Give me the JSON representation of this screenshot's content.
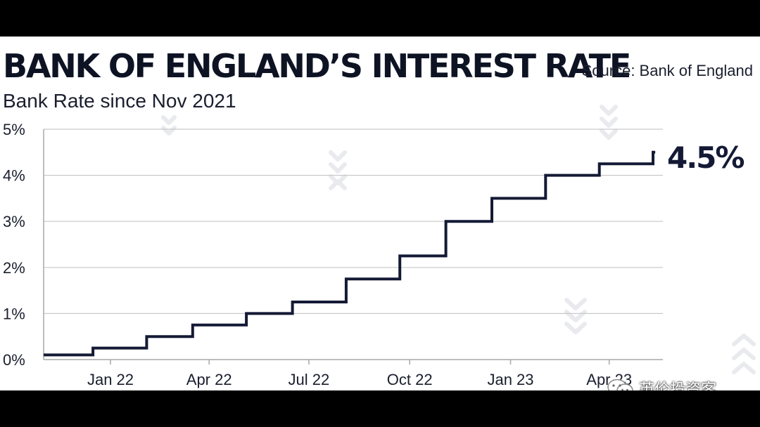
{
  "header": {
    "title": "BANK OF ENGLAND’S INTEREST RATE",
    "subtitle": "Bank Rate since Nov 2021",
    "source": "Source: Bank of England"
  },
  "watermark": {
    "text": "英伦投资客",
    "icon": "wechat-icon"
  },
  "colors": {
    "line": "#141a35",
    "background": "#ffffff",
    "grid": "#c9c9c9"
  },
  "chart_data": {
    "type": "line",
    "step": true,
    "title": "BANK OF ENGLAND’S INTEREST RATE",
    "subtitle": "Bank Rate since Nov 2021",
    "xlabel": "",
    "ylabel": "",
    "ylim": [
      0,
      5
    ],
    "yticks": [
      "0%",
      "1%",
      "2%",
      "3%",
      "4%",
      "5%"
    ],
    "xlim": [
      "2021-11-01",
      "2023-05-20"
    ],
    "xticks": [
      {
        "label": "Jan 22",
        "date": "2022-01-01"
      },
      {
        "label": "Apr 22",
        "date": "2022-04-01"
      },
      {
        "label": "Jul 22",
        "date": "2022-07-01"
      },
      {
        "label": "Oct 22",
        "date": "2022-10-01"
      },
      {
        "label": "Jan 23",
        "date": "2023-01-01"
      },
      {
        "label": "Apr 23",
        "date": "2023-04-01"
      }
    ],
    "grid": true,
    "series": [
      {
        "points": [
          {
            "date": "2021-11-01",
            "rate": 0.1
          },
          {
            "date": "2021-12-16",
            "rate": 0.25
          },
          {
            "date": "2022-02-03",
            "rate": 0.5
          },
          {
            "date": "2022-03-17",
            "rate": 0.75
          },
          {
            "date": "2022-05-05",
            "rate": 1.0
          },
          {
            "date": "2022-06-16",
            "rate": 1.25
          },
          {
            "date": "2022-08-04",
            "rate": 1.75
          },
          {
            "date": "2022-09-22",
            "rate": 2.25
          },
          {
            "date": "2022-11-03",
            "rate": 3.0
          },
          {
            "date": "2022-12-15",
            "rate": 3.5
          },
          {
            "date": "2023-02-02",
            "rate": 4.0
          },
          {
            "date": "2023-03-23",
            "rate": 4.25
          },
          {
            "date": "2023-05-11",
            "rate": 4.5
          }
        ],
        "end_date": "2023-05-13"
      }
    ],
    "end_label": "4.5%"
  }
}
